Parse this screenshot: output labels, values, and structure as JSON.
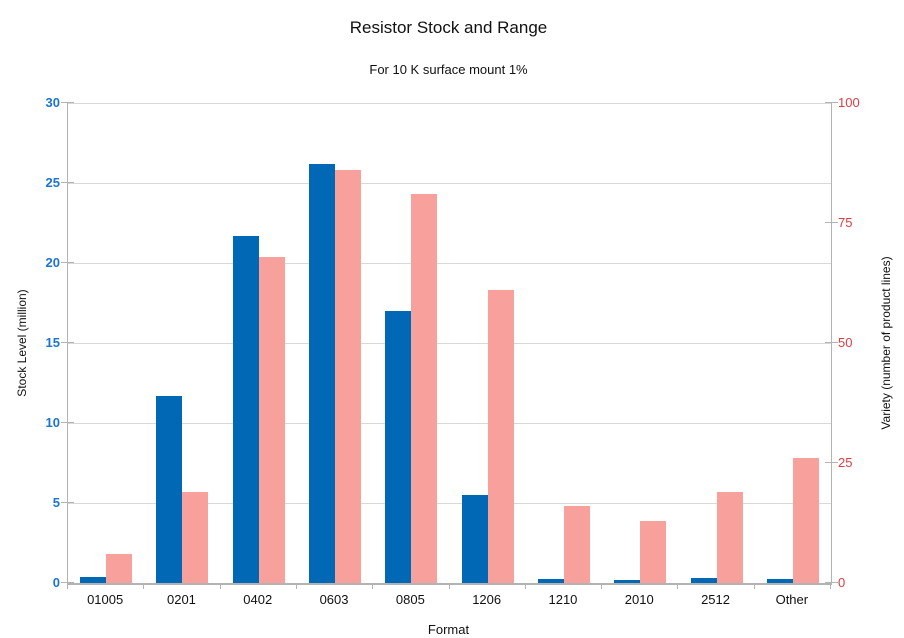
{
  "title": "Resistor Stock and Range",
  "subtitle": "For 10 K surface mount 1%",
  "colors": {
    "stock_bar": "#0068b4",
    "variety_bar": "#f8a09b",
    "left_axis_text": "#1b74cf",
    "right_axis_text": "#dd3c42",
    "grid": "#d9d9d9",
    "axis_line": "#b3b3b3",
    "text": "#111111"
  },
  "chart_data": {
    "type": "bar",
    "categories": [
      "01005",
      "0201",
      "0402",
      "0603",
      "0805",
      "1206",
      "1210",
      "2010",
      "2512",
      "Other"
    ],
    "series": [
      {
        "name": "Stock Level",
        "axis": "left",
        "color_key": "stock_bar",
        "values": [
          0.4,
          11.7,
          21.7,
          26.2,
          17,
          5.5,
          0.25,
          0.2,
          0.3,
          0.25
        ]
      },
      {
        "name": "Variety",
        "axis": "right",
        "color_key": "variety_bar",
        "values": [
          6,
          19,
          68,
          86,
          81,
          61,
          16,
          13,
          19,
          26
        ]
      }
    ],
    "title": "Resistor Stock and Range",
    "subtitle": "For 10 K surface mount 1%",
    "xlabel": "Format",
    "left_axis": {
      "label": "Stock Level (million)",
      "min": 0,
      "max": 30,
      "ticks": [
        0,
        5,
        10,
        15,
        20,
        25,
        30
      ]
    },
    "right_axis": {
      "label": "Variety (number of product lines)",
      "min": 0,
      "max": 100,
      "ticks": [
        0,
        25,
        50,
        75,
        100
      ]
    },
    "x_axis": {
      "label": "Format"
    },
    "grid": true,
    "legend": "none"
  }
}
